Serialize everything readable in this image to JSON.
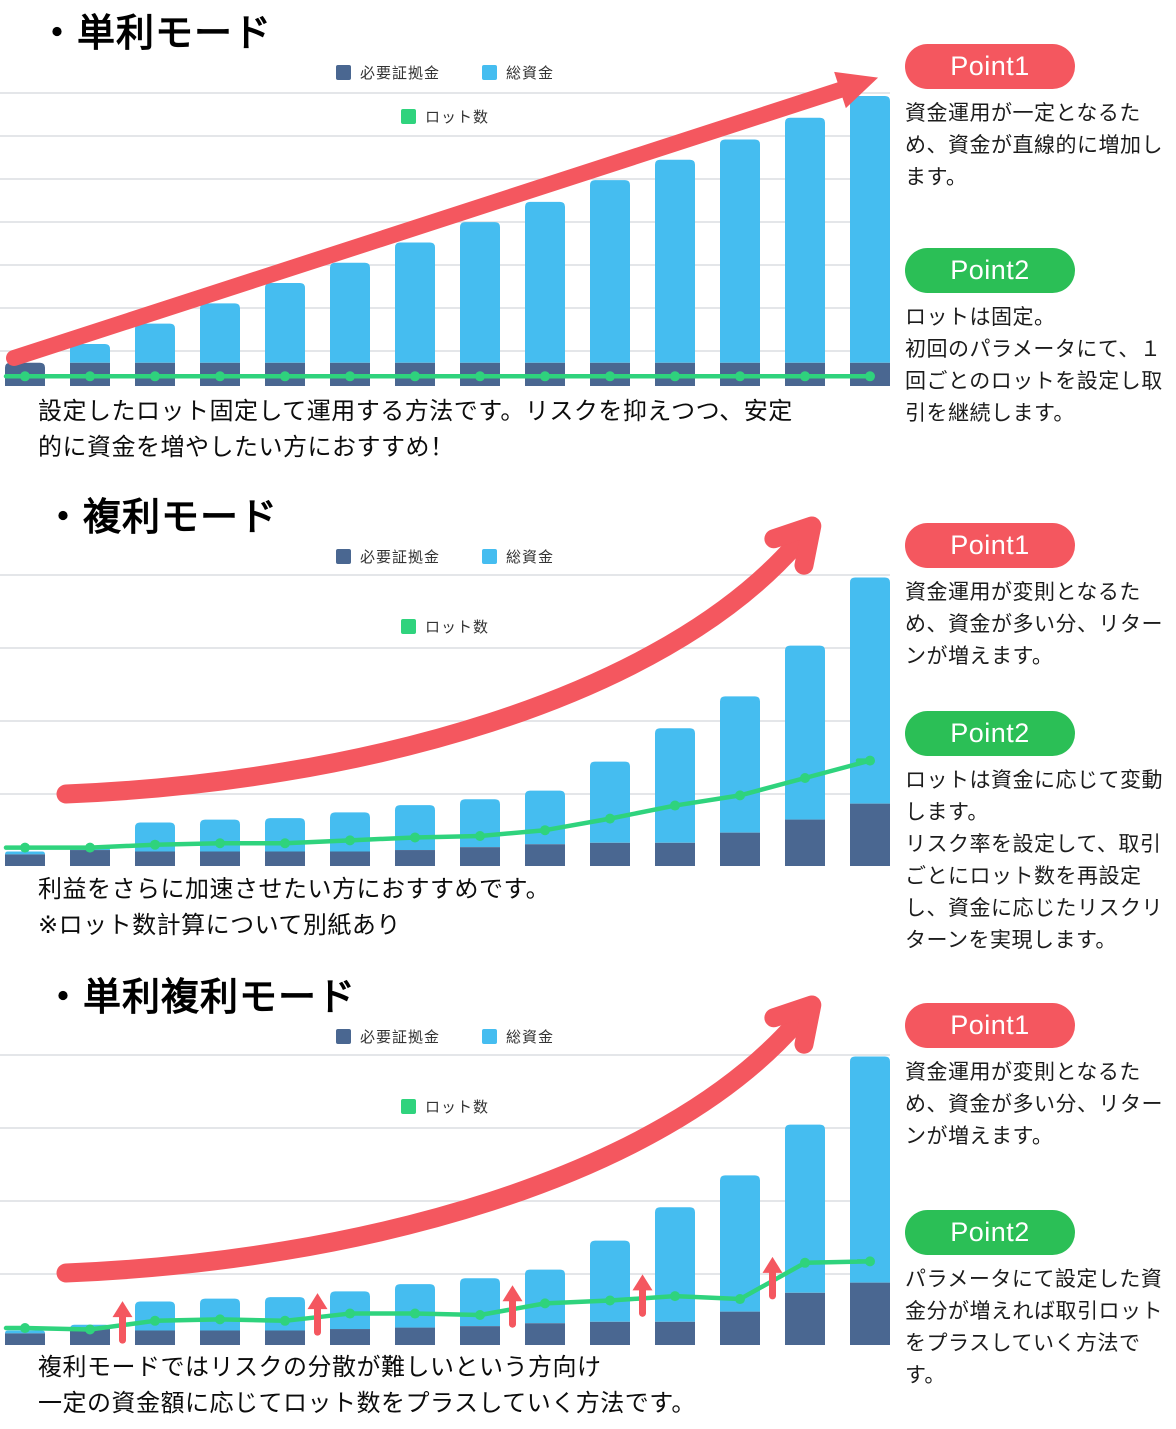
{
  "colors": {
    "margin_bar": "#4A6791",
    "funds_bar": "#45BDF0",
    "lots_line": "#2FD37D",
    "trend_arrow": "#F4575F",
    "point1_badge": "#F4575F",
    "point2_badge": "#2BBF56",
    "gridline": "#DBDEE2",
    "badge_text": "#FFFFFF"
  },
  "legend": {
    "margin_label": "必要証拠金",
    "funds_label": "総資金",
    "lots_label": "ロット数"
  },
  "sections": [
    {
      "title": "・単利モード",
      "caption": "設定したロット固定して運用する方法です。リスクを抑えつつ、安定\n的に資金を増やしたい方におすすめ！",
      "point1": {
        "label": "Point1",
        "text": "資金運用が一定となるた\nめ、資金が直線的に増加し\nます。"
      },
      "point2": {
        "label": "Point2",
        "text": "ロットは固定。\n初回のパラメータにて、１\n回ごとのロットを設定し取\n引を継続します。"
      }
    },
    {
      "title": "・複利モード",
      "caption": "利益をさらに加速させたい方におすすめです。\n※ロット数計算について別紙あり",
      "point1": {
        "label": "Point1",
        "text": "資金運用が変則となるた\nめ、資金が多い分、リター\nンが増えます。"
      },
      "point2": {
        "label": "Point2",
        "text": "ロットは資金に応じて変動\nします。\nリスク率を設定して、取引\nごとにロット数を再設定\nし、資金に応じたリスクリ\nターンを実現します。"
      }
    },
    {
      "title": "・単利複利モード",
      "caption": "複利モードではリスクの分散が難しいという方向け\n一定の資金額に応じてロット数をプラスしていく方法です。",
      "point1": {
        "label": "Point1",
        "text": "資金運用が変則となるた\nめ、資金が多い分、リター\nンが増えます。"
      },
      "point2": {
        "label": "Point2",
        "text": "パラメータにて設定した資\n金分が増えれば取引ロット\nをプラスしていく方法で\nす。"
      }
    }
  ],
  "chart_data": [
    {
      "type": "bar",
      "subtype": "stacked-bars-with-line",
      "title": "単利モード",
      "categories": [
        1,
        2,
        3,
        4,
        5,
        6,
        7,
        8,
        9,
        10,
        11,
        12,
        13,
        14
      ],
      "x_tick_labels_visible": false,
      "y_tick_labels_visible": false,
      "ylim": [
        0,
        100
      ],
      "grid": true,
      "legend_position": "top-center",
      "series": [
        {
          "name": "必要証拠金",
          "type": "bar",
          "values": [
            8,
            8,
            8,
            8,
            8,
            8,
            8,
            8,
            8,
            8,
            8,
            8,
            8,
            8
          ]
        },
        {
          "name": "総資金",
          "type": "bar",
          "values": [
            8,
            14.5,
            21.5,
            28.5,
            35.5,
            42.5,
            49.5,
            56.5,
            63.5,
            71,
            78,
            85,
            92.5,
            100
          ]
        },
        {
          "name": "ロット数",
          "type": "line",
          "values": [
            3,
            3,
            3,
            3,
            3,
            3,
            3,
            3,
            3,
            3,
            3,
            3,
            3,
            3
          ]
        }
      ],
      "annotations": [
        {
          "type": "trend-arrow",
          "shape": "straight",
          "direction": "up"
        }
      ]
    },
    {
      "type": "bar",
      "subtype": "stacked-bars-with-line",
      "title": "複利モード",
      "categories": [
        1,
        2,
        3,
        4,
        5,
        6,
        7,
        8,
        9,
        10,
        11,
        12,
        13,
        14
      ],
      "x_tick_labels_visible": false,
      "y_tick_labels_visible": false,
      "ylim": [
        0,
        100
      ],
      "grid": true,
      "legend_position": "top-center",
      "series": [
        {
          "name": "必要証拠金",
          "type": "bar",
          "values": [
            4,
            5.5,
            5,
            5,
            5,
            5,
            5.5,
            6.5,
            7.5,
            8,
            8,
            11.5,
            16,
            21.5
          ]
        },
        {
          "name": "総資金",
          "type": "bar",
          "values": [
            5,
            7,
            15,
            16,
            16.5,
            18.5,
            21,
            23,
            26,
            36,
            47.5,
            58.5,
            76,
            99.5
          ]
        },
        {
          "name": "ロット数",
          "type": "line",
          "values": [
            6,
            6,
            7,
            7.5,
            7.5,
            8.5,
            9.5,
            10,
            12,
            16,
            20.5,
            24,
            30,
            36
          ]
        }
      ],
      "annotations": [
        {
          "type": "trend-arrow",
          "shape": "exponential",
          "direction": "up"
        }
      ]
    },
    {
      "type": "bar",
      "subtype": "stacked-bars-with-line",
      "title": "単利複利モード",
      "categories": [
        1,
        2,
        3,
        4,
        5,
        6,
        7,
        8,
        9,
        10,
        11,
        12,
        13,
        14
      ],
      "x_tick_labels_visible": false,
      "y_tick_labels_visible": false,
      "ylim": [
        0,
        100
      ],
      "grid": true,
      "legend_position": "top-center",
      "series": [
        {
          "name": "必要証拠金",
          "type": "bar",
          "values": [
            4,
            5.5,
            5,
            5,
            5,
            5.5,
            6,
            6.5,
            7.5,
            8,
            8,
            11.5,
            18,
            21.5
          ]
        },
        {
          "name": "総資金",
          "type": "bar",
          "values": [
            5,
            7,
            15,
            16,
            16.5,
            18.5,
            21,
            23,
            26,
            36,
            47.5,
            58.5,
            76,
            99.5
          ]
        },
        {
          "name": "ロット数",
          "type": "line",
          "values": [
            5.5,
            5,
            8,
            8.5,
            8,
            10.5,
            10.5,
            10,
            14,
            15,
            16.5,
            15.5,
            28,
            28.5
          ]
        }
      ],
      "annotations": [
        {
          "type": "trend-arrow",
          "shape": "exponential",
          "direction": "up"
        },
        {
          "type": "lot-step-arrows",
          "direction": "up",
          "after_bars": [
            2,
            5,
            8,
            10,
            12
          ]
        }
      ]
    }
  ]
}
